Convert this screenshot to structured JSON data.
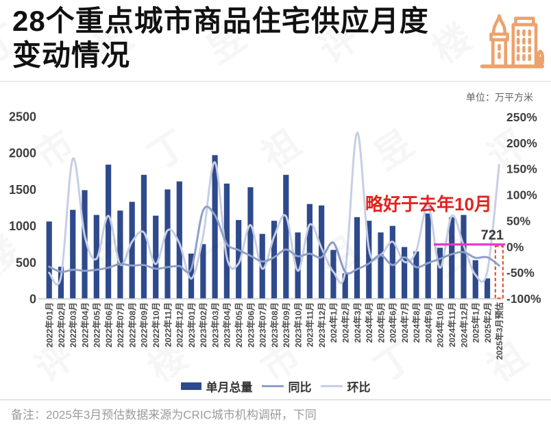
{
  "header": {
    "title_line1": "28个重点城市商品住宅供应月度",
    "title_line2": "变动情况",
    "unit_label": "单位：万平方米",
    "icon": "building-icon",
    "icon_color": "#eca26d"
  },
  "chart_data": {
    "type": "bar+line combo",
    "title": "28个重点城市商品住宅供应月度变动情况",
    "unit": "万平方米",
    "grid": "off",
    "categories": [
      "2022年01月",
      "2022年02月",
      "2022年03月",
      "2022年04月",
      "2022年05月",
      "2022年06月",
      "2022年07月",
      "2022年08月",
      "2022年09月",
      "2022年10月",
      "2022年11月",
      "2022年12月",
      "2023年01月",
      "2023年02月",
      "2023年03月",
      "2023年04月",
      "2023年05月",
      "2023年06月",
      "2023年07月",
      "2023年08月",
      "2023年09月",
      "2023年10月",
      "2023年11月",
      "2023年12月",
      "2024年1月",
      "2024年2月",
      "2024年3月",
      "2024年4月",
      "2024年5月",
      "2024年6月",
      "2024年7月",
      "2024年8月",
      "2024年9月",
      "2024年10月",
      "2024年11月",
      "2024年12月",
      "2025年1月",
      "2025年2月",
      "2025年3月预估"
    ],
    "series": [
      {
        "name": "单月总量",
        "type": "bar",
        "axis": "left",
        "color": "#2e4a8c",
        "values": [
          1060,
          440,
          1220,
          1490,
          1150,
          1840,
          1210,
          1330,
          1700,
          1140,
          1500,
          1610,
          620,
          750,
          1970,
          1580,
          1080,
          1530,
          890,
          1070,
          1700,
          910,
          1300,
          1280,
          670,
          350,
          1120,
          1070,
          910,
          1000,
          710,
          650,
          1170,
          700,
          1120,
          1150,
          530,
          280,
          721
        ]
      },
      {
        "name": "同比",
        "type": "line",
        "axis": "right",
        "color": "#8fa0c8",
        "values": [
          -38,
          -48,
          -44,
          -46,
          -44,
          -40,
          -33,
          -36,
          -35,
          -42,
          -39,
          -37,
          -42,
          70,
          61,
          6,
          -6,
          -17,
          -28,
          -20,
          -5,
          -18,
          -13,
          -20,
          8,
          -48,
          -43,
          -32,
          -16,
          -35,
          -20,
          -39,
          -31,
          -23,
          -14,
          -10,
          -21,
          -20,
          -36
        ]
      },
      {
        "name": "环比",
        "type": "line",
        "axis": "right",
        "color": "#c7cee4",
        "values": [
          -50,
          -58,
          170,
          22,
          -23,
          60,
          -34,
          10,
          28,
          -33,
          32,
          7,
          -61,
          21,
          163,
          -20,
          -32,
          42,
          -42,
          20,
          59,
          -46,
          43,
          -2,
          -48,
          -48,
          220,
          -4,
          -15,
          10,
          -29,
          -8,
          80,
          -40,
          60,
          3,
          -54,
          -47,
          158
        ]
      }
    ],
    "left_axis": {
      "ticks": [
        0,
        500,
        1000,
        1500,
        2000,
        2500
      ],
      "min": 0,
      "max": 2500
    },
    "right_axis": {
      "ticks": [
        -100,
        -50,
        0,
        50,
        100,
        150,
        200,
        250
      ],
      "min": -100,
      "max": 250,
      "suffix": "%"
    },
    "forecast": {
      "index": 38,
      "label": "721",
      "style": "red-dashed-outline",
      "color": "#e2523a"
    },
    "annotation": {
      "text": "略好于去年10月",
      "color": "#e02320"
    },
    "reference_line": {
      "value": 745,
      "color": "#e936c9",
      "note": "compares forecast with 2024年10月 level"
    }
  },
  "legend": {
    "items": [
      {
        "label": "单月总量",
        "swatch": "bar",
        "color": "#2e4a8c"
      },
      {
        "label": "同比",
        "swatch": "line",
        "color": "#8fa0c8"
      },
      {
        "label": "环比",
        "swatch": "line",
        "color": "#c7cee4"
      }
    ]
  },
  "footer": {
    "note": "备注：2025年3月预估数据来源为CRIC城市机构调研，下同"
  },
  "watermark": {
    "chars": "丁祖昱评楼市"
  }
}
